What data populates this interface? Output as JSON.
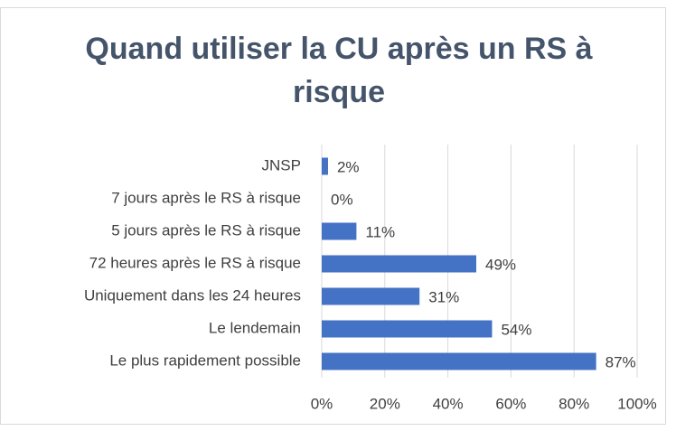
{
  "chart_data": {
    "type": "bar",
    "orientation": "horizontal",
    "title": "Quand utiliser la CU après un RS à risque",
    "categories": [
      "JNSP",
      "7 jours après le RS à risque",
      "5 jours après le RS à risque",
      "72 heures après le RS à risque",
      "Uniquement dans les 24 heures",
      "Le lendemain",
      "Le plus rapidement possible"
    ],
    "values": [
      2,
      0,
      11,
      49,
      31,
      54,
      87
    ],
    "value_labels": [
      "2%",
      "0%",
      "11%",
      "49%",
      "31%",
      "54%",
      "87%"
    ],
    "color": "#4472c4",
    "xlim": [
      0,
      100
    ],
    "xticks": [
      {
        "value": 0,
        "label": "0%"
      },
      {
        "value": 20,
        "label": "20%"
      },
      {
        "value": 40,
        "label": "40%"
      },
      {
        "value": 60,
        "label": "60%"
      },
      {
        "value": 80,
        "label": "80%"
      },
      {
        "value": 100,
        "label": "100%"
      }
    ],
    "grid": true
  }
}
